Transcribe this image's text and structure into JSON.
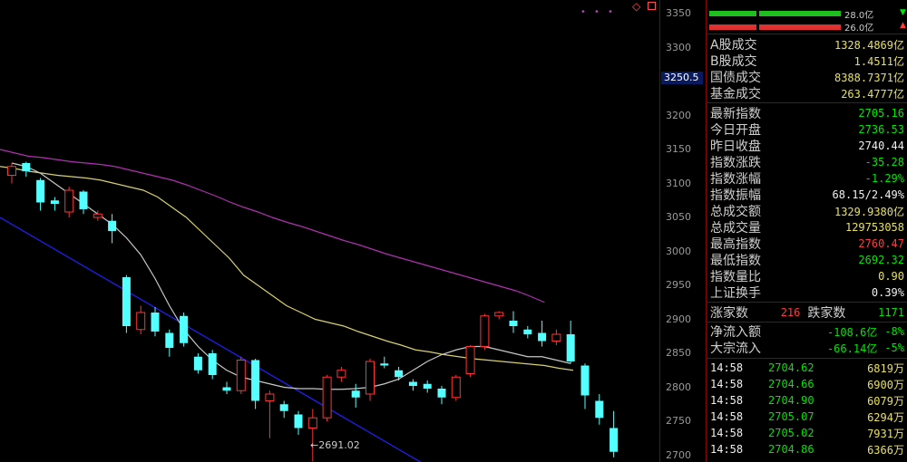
{
  "chart_data": {
    "type": "candlestick",
    "ylim": [
      2690,
      3370
    ],
    "yticks": [
      "3350",
      "3300",
      "3250",
      "3200",
      "3150",
      "3100",
      "3050",
      "3000",
      "2950",
      "2900",
      "2850",
      "2800",
      "2750",
      "2700"
    ],
    "current_price_marker": "3250.5",
    "low_annotation": "←2691.02",
    "colors": {
      "up": "#ff3333",
      "down": "#54ffff",
      "ma_yellow": "#d8d070",
      "ma_gray": "#c8c8c8",
      "ma_purple": "#b030b0",
      "trend": "#2020ff"
    },
    "candles": [
      {
        "o": 3112,
        "c": 3125,
        "h": 3130,
        "l": 3100
      },
      {
        "o": 3130,
        "c": 3118,
        "h": 3132,
        "l": 3110
      },
      {
        "o": 3105,
        "c": 3072,
        "h": 3108,
        "l": 3060
      },
      {
        "o": 3075,
        "c": 3070,
        "h": 3080,
        "l": 3060
      },
      {
        "o": 3058,
        "c": 3090,
        "h": 3095,
        "l": 3050
      },
      {
        "o": 3088,
        "c": 3062,
        "h": 3090,
        "l": 3055
      },
      {
        "o": 3050,
        "c": 3055,
        "h": 3060,
        "l": 3045
      },
      {
        "o": 3045,
        "c": 3030,
        "h": 3055,
        "l": 3012
      },
      {
        "o": 2962,
        "c": 2890,
        "h": 2965,
        "l": 2880
      },
      {
        "o": 2885,
        "c": 2910,
        "h": 2920,
        "l": 2878
      },
      {
        "o": 2910,
        "c": 2882,
        "h": 2918,
        "l": 2875
      },
      {
        "o": 2880,
        "c": 2858,
        "h": 2885,
        "l": 2845
      },
      {
        "o": 2905,
        "c": 2865,
        "h": 2910,
        "l": 2860
      },
      {
        "o": 2845,
        "c": 2825,
        "h": 2850,
        "l": 2820
      },
      {
        "o": 2850,
        "c": 2818,
        "h": 2855,
        "l": 2812
      },
      {
        "o": 2800,
        "c": 2795,
        "h": 2808,
        "l": 2790
      },
      {
        "o": 2795,
        "c": 2840,
        "h": 2845,
        "l": 2790
      },
      {
        "o": 2840,
        "c": 2780,
        "h": 2842,
        "l": 2768
      },
      {
        "o": 2780,
        "c": 2790,
        "h": 2795,
        "l": 2725
      },
      {
        "o": 2775,
        "c": 2765,
        "h": 2780,
        "l": 2755
      },
      {
        "o": 2760,
        "c": 2740,
        "h": 2765,
        "l": 2730
      },
      {
        "o": 2740,
        "c": 2755,
        "h": 2768,
        "l": 2691
      },
      {
        "o": 2755,
        "c": 2815,
        "h": 2818,
        "l": 2750
      },
      {
        "o": 2815,
        "c": 2825,
        "h": 2830,
        "l": 2808
      },
      {
        "o": 2795,
        "c": 2785,
        "h": 2805,
        "l": 2770
      },
      {
        "o": 2790,
        "c": 2838,
        "h": 2842,
        "l": 2780
      },
      {
        "o": 2835,
        "c": 2832,
        "h": 2845,
        "l": 2828
      },
      {
        "o": 2825,
        "c": 2815,
        "h": 2830,
        "l": 2810
      },
      {
        "o": 2808,
        "c": 2802,
        "h": 2812,
        "l": 2795
      },
      {
        "o": 2805,
        "c": 2798,
        "h": 2810,
        "l": 2792
      },
      {
        "o": 2798,
        "c": 2785,
        "h": 2802,
        "l": 2775
      },
      {
        "o": 2785,
        "c": 2815,
        "h": 2818,
        "l": 2780
      },
      {
        "o": 2820,
        "c": 2860,
        "h": 2862,
        "l": 2815
      },
      {
        "o": 2860,
        "c": 2905,
        "h": 2908,
        "l": 2855
      },
      {
        "o": 2905,
        "c": 2910,
        "h": 2912,
        "l": 2900
      },
      {
        "o": 2898,
        "c": 2890,
        "h": 2912,
        "l": 2880
      },
      {
        "o": 2885,
        "c": 2878,
        "h": 2890,
        "l": 2872
      },
      {
        "o": 2880,
        "c": 2868,
        "h": 2898,
        "l": 2860
      },
      {
        "o": 2868,
        "c": 2878,
        "h": 2885,
        "l": 2862
      },
      {
        "o": 2878,
        "c": 2838,
        "h": 2898,
        "l": 2835
      },
      {
        "o": 2832,
        "c": 2788,
        "h": 2835,
        "l": 2768
      },
      {
        "o": 2780,
        "c": 2755,
        "h": 2790,
        "l": 2745
      },
      {
        "o": 2740,
        "c": 2705,
        "h": 2765,
        "l": 2697
      }
    ],
    "ma_yellow": [
      3125,
      3122,
      3118,
      3115,
      3112,
      3110,
      3108,
      3105,
      3100,
      3095,
      3090,
      3080,
      3065,
      3050,
      3030,
      3010,
      2990,
      2965,
      2950,
      2935,
      2920,
      2910,
      2900,
      2895,
      2890,
      2882,
      2875,
      2868,
      2862,
      2855,
      2852,
      2848,
      2845,
      2842,
      2840,
      2838,
      2836,
      2834,
      2832,
      2828,
      2825
    ],
    "ma_gray": [
      3130,
      3125,
      3115,
      3100,
      3085,
      3070,
      3055,
      3040,
      3020,
      2995,
      2960,
      2920,
      2885,
      2860,
      2840,
      2825,
      2815,
      2810,
      2805,
      2800,
      2798,
      2798,
      2797,
      2797,
      2798,
      2800,
      2805,
      2812,
      2825,
      2838,
      2848,
      2855,
      2860,
      2860,
      2855,
      2850,
      2845,
      2845,
      2840,
      2835
    ],
    "ma_purple": [
      3150,
      3145,
      3140,
      3138,
      3135,
      3132,
      3130,
      3128,
      3125,
      3120,
      3115,
      3110,
      3105,
      3098,
      3090,
      3082,
      3073,
      3065,
      3058,
      3050,
      3043,
      3037,
      3030,
      3023,
      3016,
      3010,
      3003,
      2996,
      2990,
      2984,
      2978,
      2972,
      2966,
      2960,
      2954,
      2948,
      2942,
      2934,
      2925
    ],
    "trend_line": [
      [
        3050,
        0
      ],
      [
        2685,
        470
      ]
    ]
  },
  "bars": {
    "row1_caption": "28.0亿",
    "row2_caption": "26.0亿"
  },
  "market_stats": [
    {
      "label": "A股成交",
      "value": "1328.4869亿",
      "color": "yellow"
    },
    {
      "label": "B股成交",
      "value": "1.4511亿",
      "color": "yellow"
    },
    {
      "label": "国债成交",
      "value": "8388.7371亿",
      "color": "yellow"
    },
    {
      "label": "基金成交",
      "value": "263.4777亿",
      "color": "yellow"
    }
  ],
  "index_stats": [
    {
      "label": "最新指数",
      "value": "2705.16",
      "color": "green"
    },
    {
      "label": "今日开盘",
      "value": "2736.53",
      "color": "green"
    },
    {
      "label": "昨日收盘",
      "value": "2740.44",
      "color": "white"
    },
    {
      "label": "指数涨跌",
      "value": "-35.28",
      "color": "green"
    },
    {
      "label": "指数涨幅",
      "value": "-1.29%",
      "color": "green"
    },
    {
      "label": "指数振幅",
      "value": "68.15/2.49%",
      "color": "white"
    },
    {
      "label": "总成交额",
      "value": "1329.9380亿",
      "color": "yellow"
    },
    {
      "label": "总成交量",
      "value": "129753058",
      "color": "yellow"
    },
    {
      "label": "最高指数",
      "value": "2760.47",
      "color": "red"
    },
    {
      "label": "最低指数",
      "value": "2692.32",
      "color": "green"
    },
    {
      "label": "指数量比",
      "value": "0.90",
      "color": "yellow"
    },
    {
      "label": "上证换手",
      "value": "0.39%",
      "color": "white"
    }
  ],
  "breadth": {
    "up_label": "涨家数",
    "up_value": "216",
    "down_label": "跌家数",
    "down_value": "1171"
  },
  "flows": [
    {
      "label": "净流入额",
      "value": "-108.6亿",
      "pct": "-8%"
    },
    {
      "label": "大宗流入",
      "value": "-66.14亿",
      "pct": "-5%"
    }
  ],
  "ticks": [
    {
      "time": "14:58",
      "price": "2704.62",
      "vol": "6819",
      "unit": "万"
    },
    {
      "time": "14:58",
      "price": "2704.66",
      "vol": "6900",
      "unit": "万"
    },
    {
      "time": "14:58",
      "price": "2704.90",
      "vol": "6079",
      "unit": "万"
    },
    {
      "time": "14:58",
      "price": "2705.07",
      "vol": "6294",
      "unit": "万"
    },
    {
      "time": "14:58",
      "price": "2705.02",
      "vol": "7931",
      "unit": "万"
    },
    {
      "time": "14:58",
      "price": "2704.86",
      "vol": "6366",
      "unit": "万"
    }
  ]
}
